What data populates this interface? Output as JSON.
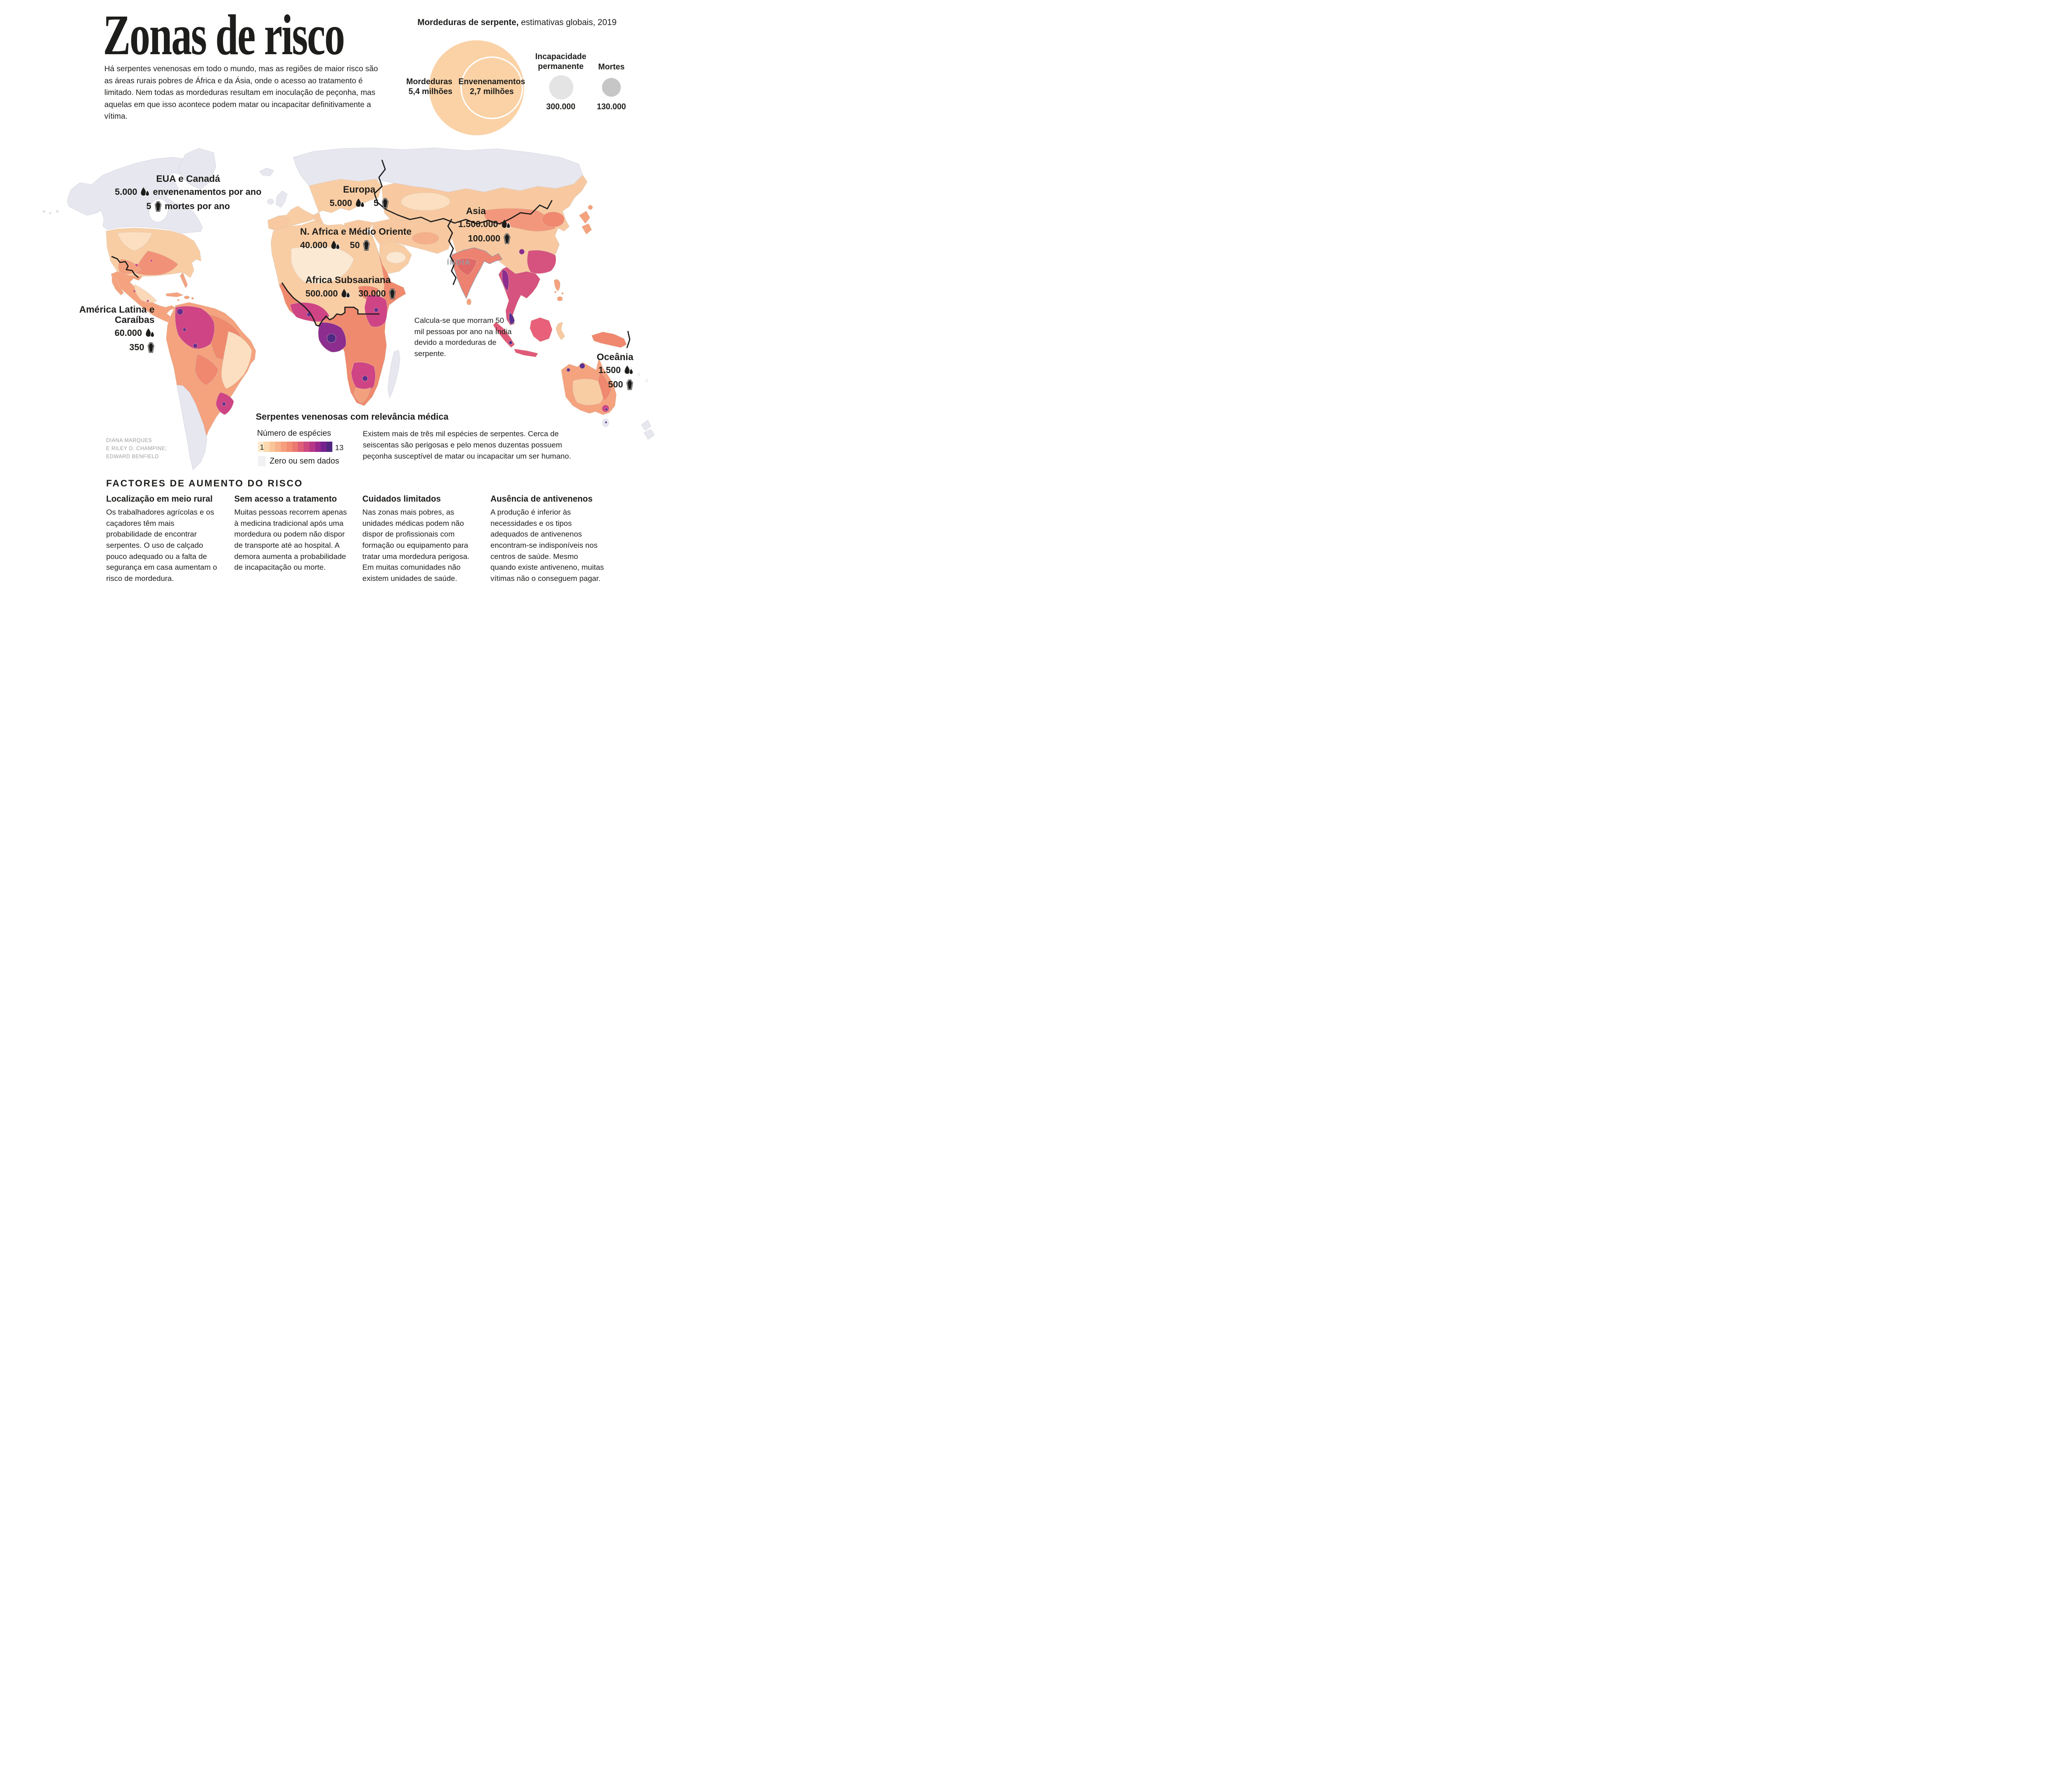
{
  "header": {
    "title": "Zonas de risco",
    "intro": "Há serpentes venenosas em todo o mundo, mas as regiões de maior risco são as áreas rurais pobres de África e da Ásia, onde o acesso ao tratamento é limitado. Nem todas as mordeduras resultam em inoculação de peçonha, mas aquelas em que isso acontece podem matar ou incapacitar definitivamente a vítima."
  },
  "bubble": {
    "title_bold": "Mordeduras de serpente,",
    "title_rest": " estimativas globais, 2019",
    "bites_label": "Mordeduras",
    "bites_value": "5,4 milhões",
    "env_label": "Envenenamentos",
    "env_value": "2,7 milhões",
    "disability_label": "Incapacidade permanente",
    "disability_value": "300.000",
    "deaths_label": "Mortes",
    "deaths_value": "130.000",
    "bites_color": "#fad2a6",
    "disability_color": "#e4e4e4",
    "deaths_color": "#c6c6c6"
  },
  "chart_data": [
    {
      "type": "bubble",
      "title": "Mordeduras de serpente, estimativas globais, 2019",
      "values": [
        {
          "label": "Mordeduras",
          "value": 5400000
        },
        {
          "label": "Envenenamentos",
          "value": 2700000
        },
        {
          "label": "Incapacidade permanente",
          "value": 300000
        },
        {
          "label": "Mortes",
          "value": 130000
        }
      ]
    },
    {
      "type": "heatmap",
      "title": "Serpentes venenosas com relevância médica",
      "scale_label": "Número de espécies",
      "scale_range": [
        1,
        13
      ],
      "no_data_label": "Zero ou sem dados",
      "regions": [
        {
          "name": "EUA e Canadá",
          "envenenamentos_por_ano": 5000,
          "mortes_por_ano": 5
        },
        {
          "name": "Europa",
          "envenenamentos_por_ano": 5000,
          "mortes_por_ano": 5
        },
        {
          "name": "Asia",
          "envenenamentos_por_ano": 1500000,
          "mortes_por_ano": 100000
        },
        {
          "name": "N. Africa e Médio Oriente",
          "envenenamentos_por_ano": 40000,
          "mortes_por_ano": 50
        },
        {
          "name": "Africa Subsaariana",
          "envenenamentos_por_ano": 500000,
          "mortes_por_ano": 30000
        },
        {
          "name": "América Latina e Caraíbas",
          "envenenamentos_por_ano": 60000,
          "mortes_por_ano": 350
        },
        {
          "name": "Oceânia",
          "envenenamentos_por_ano": 1500,
          "mortes_por_ano": 500
        }
      ],
      "annotation": "Calcula-se que morram 50 mil pessoas por ano na Índia devido a mordeduras de serpente."
    }
  ],
  "map": {
    "regions": [
      {
        "name": "EUA e Canadá",
        "env": "5.000",
        "env_suffix": "envenenamentos por ano",
        "deaths": "5",
        "deaths_suffix": "mortes por ano"
      },
      {
        "name": "Europa",
        "env": "5.000",
        "deaths": "5"
      },
      {
        "name": "Asia",
        "env": "1.500.000",
        "deaths": "100.000"
      },
      {
        "name": "N. Africa e Médio Oriente",
        "env": "40.000",
        "deaths": "50"
      },
      {
        "name": "Africa Subsaariana",
        "env": "500.000",
        "deaths": "30.000"
      },
      {
        "name": "América Latina e Caraíbas",
        "env": "60.000",
        "deaths": "350"
      },
      {
        "name": "Oceânia",
        "env": "1.500",
        "deaths": "500"
      }
    ],
    "india_label": "ÍNDIA",
    "india_note": "Calcula-se que morram 50 mil pessoas por ano na Índia devido a mordeduras de serpente.",
    "credits_line1": "DIANA MARQUES",
    "credits_line2": "E RILEY D. CHAMPINE;",
    "credits_line3": "EDWARD BENFIELD"
  },
  "legend": {
    "title": "Serpentes venenosas com relevância médica",
    "species_label": "Número de espécies",
    "min": "1",
    "max": "13",
    "no_data_label": "Zero ou sem dados",
    "no_data_color": "#f1f0f2",
    "scale_colors": [
      "#fdeacb",
      "#fbd8ad",
      "#f9c597",
      "#f7b289",
      "#f59f7c",
      "#f28c72",
      "#eb7871",
      "#de5f77",
      "#cd4a80",
      "#b63687",
      "#98288c",
      "#76228f",
      "#50277f"
    ],
    "description": "Existem mais de três mil espécies de serpentes. Cerca de seiscentas são perigosas e pelo menos duzentas possuem peçonha susceptível de matar ou incapacitar um ser humano."
  },
  "factors": {
    "heading": "FACTORES DE AUMENTO DO RISCO",
    "columns": [
      {
        "title": "Localização em meio rural",
        "body": "Os trabalhadores agrícolas e os caçadores têm mais probabilidade de encontrar serpentes. O uso de calçado pouco adequado ou a falta de segurança em casa aumentam o risco de mordedura."
      },
      {
        "title": "Sem acesso a tratamento",
        "body": "Muitas pessoas recorrem apenas à medicina tradicional após uma mordedura ou podem não dispor de transporte até ao hospital. A demora aumenta a probabilidade de incapacitação ou morte."
      },
      {
        "title": "Cuidados limitados",
        "body": "Nas zonas mais pobres, as unidades médicas podem não dispor de profissionais com formação ou equipamento para tratar uma mordedura perigosa. Em muitas comunidades não existem unidades de saúde."
      },
      {
        "title": "Ausência de antivenenos",
        "body": "A produção é inferior às necessidades e os tipos adequados de antivenenos encontram-se indisponíveis nos centros de saúde. Mesmo quando existe antiveneno, muitas vítimas não o conseguem pagar."
      }
    ]
  }
}
